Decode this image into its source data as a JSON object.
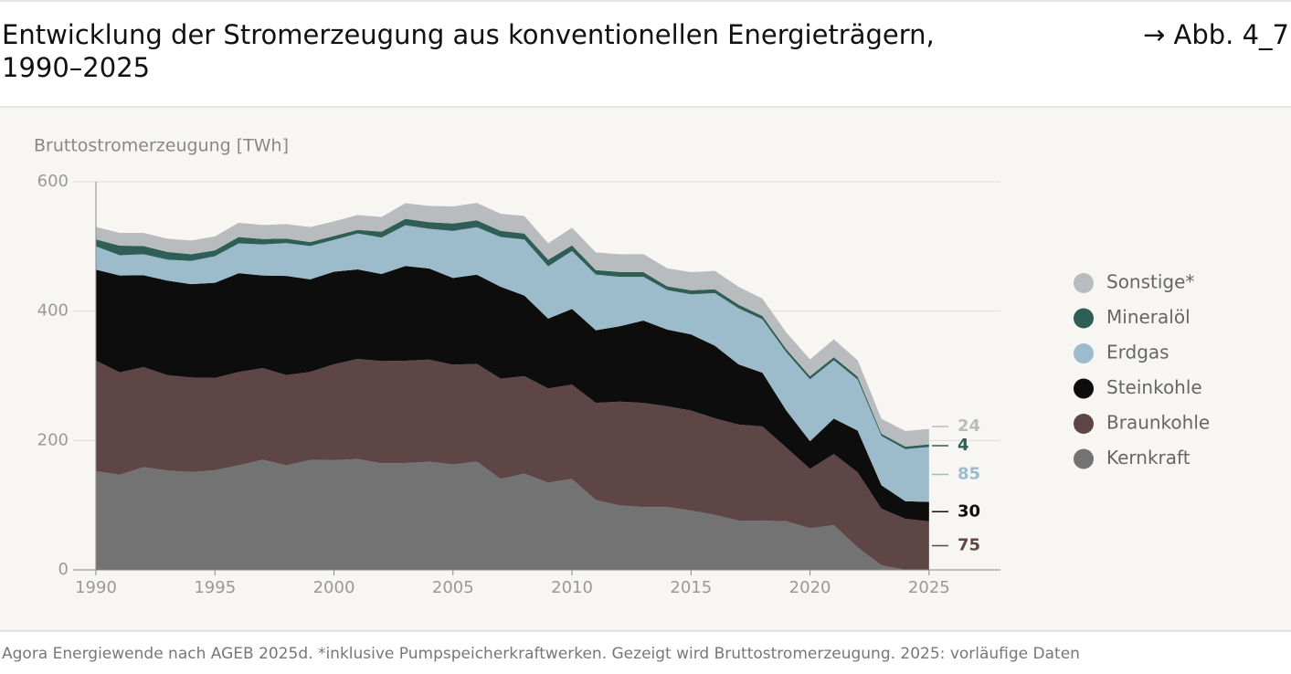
{
  "chart_data": {
    "type": "stacked-area",
    "title": "Entwicklung der Stromerzeugung aus konventionellen Energieträgern, 1990–2025",
    "figure_ref": "→ Abb. 4_7",
    "y_label": "Bruttostromerzeugung [TWh]",
    "source": "Agora Energiewende nach AGEB 2025d. *inklusive Pumpspeicherkraftwerken. Gezeigt wird Bruttostromerzeugung. 2025: vorläufige Daten",
    "x": [
      1990,
      1991,
      1992,
      1993,
      1994,
      1995,
      1996,
      1997,
      1998,
      1999,
      2000,
      2001,
      2002,
      2003,
      2004,
      2005,
      2006,
      2007,
      2008,
      2009,
      2010,
      2011,
      2012,
      2013,
      2014,
      2015,
      2016,
      2017,
      2018,
      2019,
      2020,
      2021,
      2022,
      2023,
      2024,
      2025
    ],
    "xlim": [
      1990,
      2028
    ],
    "xticks": [
      1990,
      1995,
      2000,
      2005,
      2010,
      2015,
      2020,
      2025
    ],
    "ylim": [
      0,
      600
    ],
    "yticks": [
      0,
      200,
      400,
      600
    ],
    "grid": true,
    "series": [
      {
        "name": "Sonstige*",
        "color": "#b9bcbf",
        "values": [
          19.3,
          19.8,
          20.3,
          20.5,
          21.2,
          21.5,
          22.1,
          21.7,
          22.4,
          23.4,
          22.6,
          23,
          22.5,
          24.3,
          25,
          26.4,
          27,
          26.4,
          27.2,
          25.4,
          27.5,
          27.3,
          27.4,
          27.9,
          27.9,
          28,
          28.5,
          27.7,
          26.8,
          25.8,
          26.2,
          27.6,
          25.3,
          23,
          24,
          24
        ]
      },
      {
        "name": "Mineralöl",
        "color": "#2e5e55",
        "values": [
          10.8,
          14.8,
          12.8,
          11.8,
          10.3,
          9.1,
          9.9,
          8.4,
          7,
          5.9,
          5.9,
          5.6,
          9.2,
          9.9,
          10.3,
          11.6,
          10.5,
          9.6,
          9.2,
          10.1,
          8.7,
          6.8,
          7.6,
          7.2,
          5.7,
          6.2,
          5.8,
          5.6,
          5.2,
          4.8,
          4.7,
          4.7,
          4.6,
          3.6,
          3.9,
          4
        ]
      },
      {
        "name": "Erdgas",
        "color": "#9dbccb",
        "values": [
          35.9,
          31.2,
          32.5,
          32.6,
          35.9,
          41.1,
          46.1,
          48,
          50.8,
          51.6,
          49.2,
          55.5,
          56.3,
          62.9,
          61.4,
          72.7,
          73.4,
          77,
          86.7,
          80.9,
          89.3,
          86.1,
          76.4,
          67.5,
          61.1,
          62,
          81.3,
          86.7,
          82.5,
          89.9,
          95.7,
          90.3,
          78.9,
          76.3,
          80.5,
          85
        ]
      },
      {
        "name": "Steinkohle",
        "color": "#0d0d0d",
        "values": [
          140.8,
          149.8,
          141.9,
          146.1,
          144.4,
          147.1,
          152.7,
          143.1,
          153.4,
          143.1,
          143.1,
          138.4,
          134.6,
          146.5,
          140.8,
          134.1,
          137.9,
          142,
          124.6,
          107.9,
          117,
          112.4,
          116.4,
          127.3,
          118.6,
          117.7,
          112.2,
          92.9,
          83.2,
          57.5,
          42.8,
          54.6,
          64.4,
          36.1,
          27.1,
          30
        ]
      },
      {
        "name": "Braunkohle",
        "color": "#5e4647",
        "values": [
          170.9,
          158.3,
          154.7,
          147.5,
          146.1,
          142.6,
          144.3,
          141.7,
          139.4,
          136,
          148.3,
          154.8,
          158,
          158.2,
          158,
          154.1,
          151.1,
          155.1,
          150.6,
          145.6,
          145.9,
          150.1,
          160.7,
          160.9,
          155.8,
          154.5,
          149.5,
          148.4,
          145.6,
          114,
          91.7,
          110.1,
          116.2,
          87.4,
          79.1,
          75
        ]
      },
      {
        "name": "Kernkraft",
        "color": "#737373",
        "values": [
          152.5,
          147,
          158.8,
          153.5,
          151.2,
          154.1,
          161.6,
          170.3,
          161.6,
          170,
          169.6,
          171.3,
          164.8,
          165.1,
          167.1,
          163,
          167.4,
          140.5,
          148.8,
          134.9,
          140.6,
          108,
          99.5,
          97.3,
          97.1,
          91.8,
          84.9,
          76.3,
          76,
          75.1,
          64.4,
          69.1,
          34.7,
          7.2,
          0,
          0
        ]
      }
    ]
  }
}
